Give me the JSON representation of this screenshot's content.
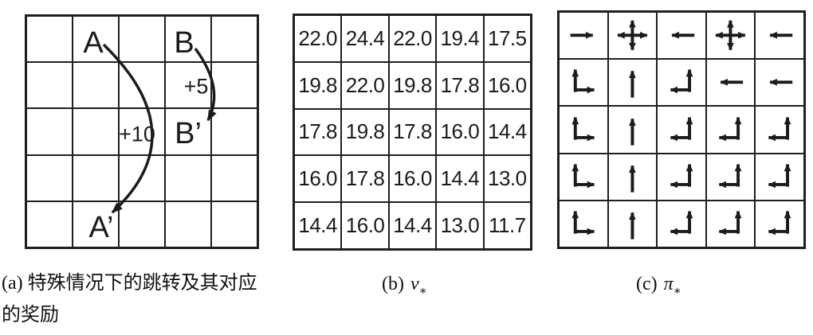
{
  "figure": {
    "line_color": "#1b1b1b",
    "panel_a": {
      "caption_line1": "(a) 特殊情况下的跳转及其对应",
      "caption_line2": "的奖励",
      "labels": {
        "A": "A",
        "B": "B",
        "A_prime": "A’",
        "B_prime": "B’",
        "reward_a": "+10",
        "reward_b": "+5"
      },
      "grid_rows": 5,
      "grid_cols": 5
    },
    "panel_b": {
      "caption_prefix": "(b)",
      "caption_symbol": "v",
      "caption_sub": "∗",
      "values": [
        [
          "22.0",
          "24.4",
          "22.0",
          "19.4",
          "17.5"
        ],
        [
          "19.8",
          "22.0",
          "19.8",
          "17.8",
          "16.0"
        ],
        [
          "17.8",
          "19.8",
          "17.8",
          "16.0",
          "14.4"
        ],
        [
          "16.0",
          "17.8",
          "16.0",
          "14.4",
          "13.0"
        ],
        [
          "14.4",
          "16.0",
          "14.4",
          "13.0",
          "11.7"
        ]
      ]
    },
    "panel_c": {
      "caption_prefix": "(c)",
      "caption_symbol": "π",
      "caption_sub": "∗",
      "arrows": [
        [
          "right",
          "cross",
          "left",
          "cross",
          "left"
        ],
        [
          "up-right",
          "up",
          "up-left",
          "left",
          "left"
        ],
        [
          "up-right",
          "up",
          "up-left",
          "up-left",
          "up-left"
        ],
        [
          "up-right",
          "up",
          "up-left",
          "up-left",
          "up-left"
        ],
        [
          "up-right",
          "up",
          "up-left",
          "up-left",
          "up-left"
        ]
      ]
    }
  }
}
